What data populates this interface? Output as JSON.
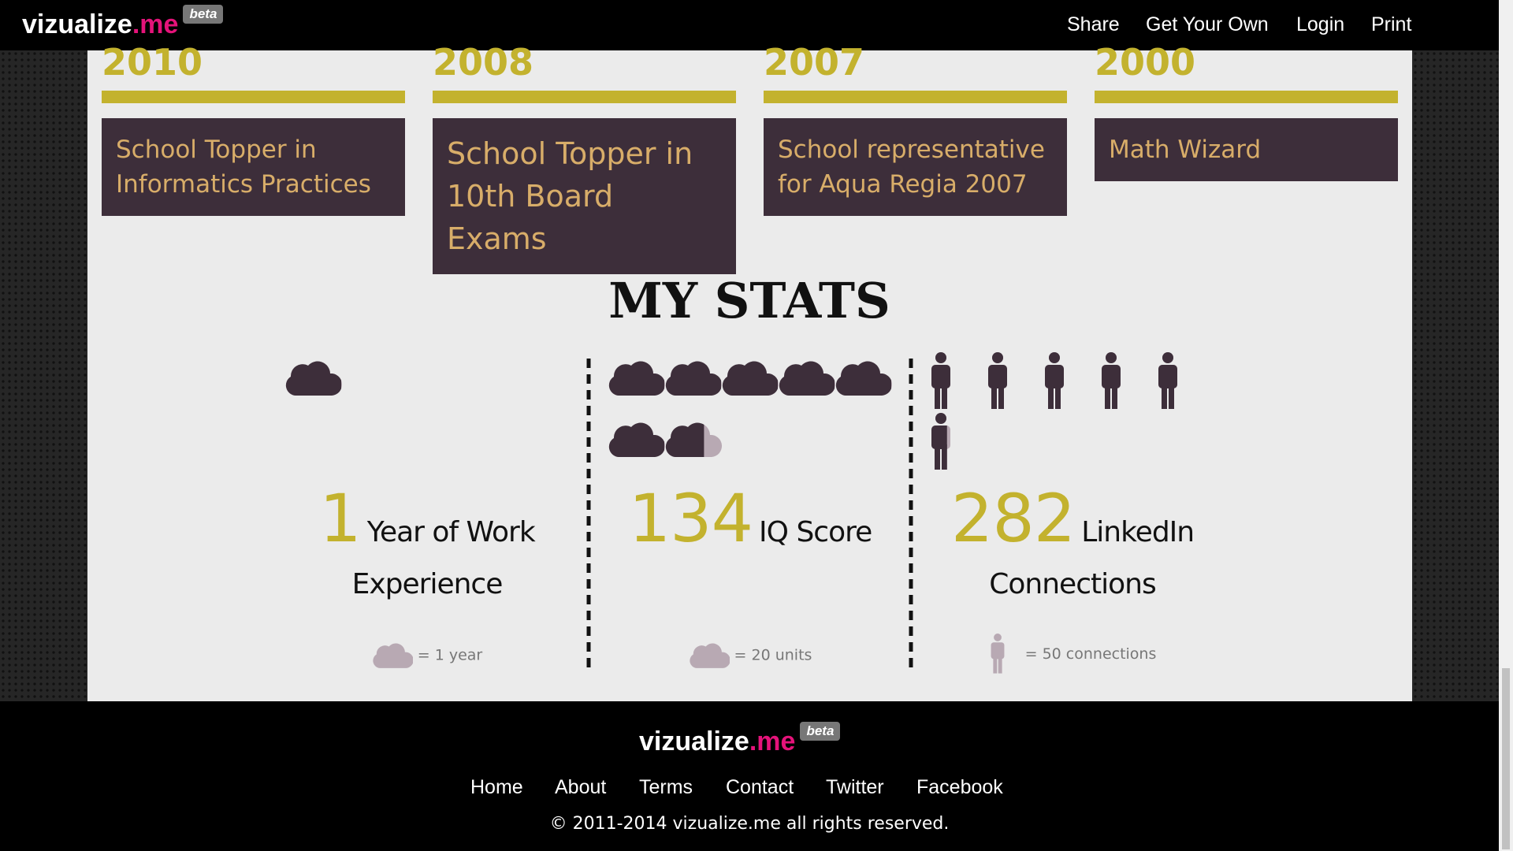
{
  "header": {
    "logo": {
      "name": "vizualize",
      "tld": ".me",
      "badge": "beta"
    },
    "nav": [
      "Share",
      "Get Your Own",
      "Login",
      "Print"
    ]
  },
  "timeline": [
    {
      "year": "2010",
      "text": "School Topper in Informatics Practices"
    },
    {
      "year": "2008",
      "text": "School Topper in 10th Board Exams"
    },
    {
      "year": "2007",
      "text": "School representative for Aqua Regia 2007"
    },
    {
      "year": "2000",
      "text": "Math Wizard"
    }
  ],
  "stats": {
    "title": "MY STATS",
    "items": [
      {
        "icon": "cloud",
        "value": 1,
        "label": "Year of Work Experience",
        "legend": {
          "value": 1,
          "label": "= 1 year"
        }
      },
      {
        "icon": "cloud",
        "value": 134,
        "label": "IQ Score",
        "legend": {
          "value": 20,
          "label": "= 20 units"
        }
      },
      {
        "icon": "person",
        "value": 282,
        "label": "LinkedIn Connections",
        "legend": {
          "value": 50,
          "label": "= 50 connections"
        }
      }
    ]
  },
  "footer": {
    "logo": {
      "name": "vizualize",
      "tld": ".me",
      "badge": "beta"
    },
    "links": [
      "Home",
      "About",
      "Terms",
      "Contact",
      "Twitter",
      "Facebook"
    ],
    "copyright": "© 2011-2014 vizualize.me all rights reserved."
  }
}
